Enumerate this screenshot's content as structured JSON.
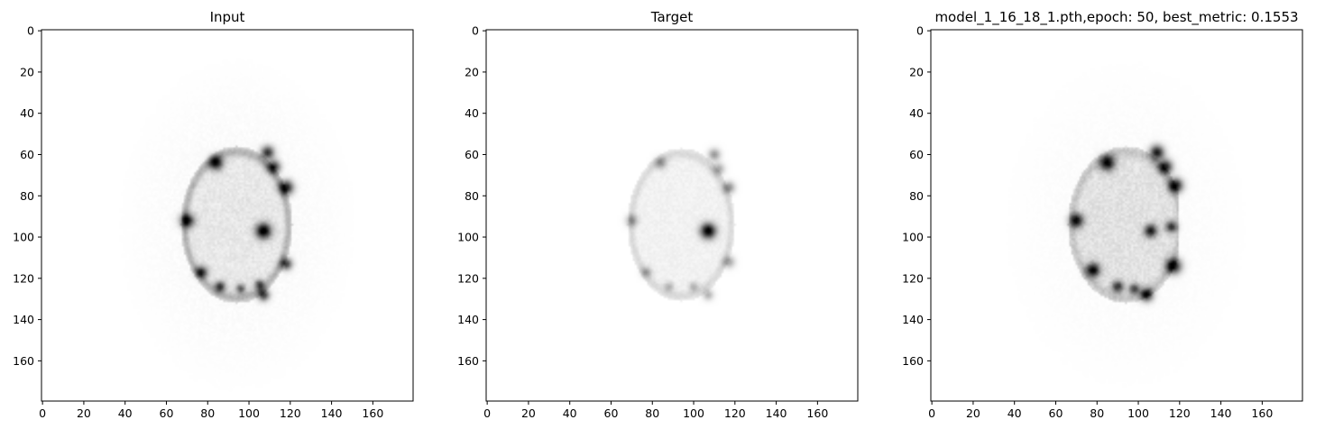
{
  "chart_data": [
    {
      "type": "heatmap",
      "title": "Input",
      "colormap": "gray_r",
      "xlim": [
        0,
        179
      ],
      "ylim": [
        179,
        0
      ],
      "x_ticks": [
        0,
        20,
        40,
        60,
        80,
        100,
        120,
        140,
        160
      ],
      "y_ticks": [
        0,
        20,
        40,
        60,
        80,
        100,
        120,
        140,
        160
      ],
      "image": {
        "shape": "ellipse",
        "center": [
          94,
          94
        ],
        "radii": [
          27,
          38
        ],
        "ring_intensity": 0.22,
        "fill_intensity": 0.07,
        "noise_halo": 0.03,
        "blobs": [
          {
            "x": 84,
            "y": 64,
            "r": 2.4,
            "v": 0.85
          },
          {
            "x": 109,
            "y": 59,
            "r": 2.2,
            "v": 0.8
          },
          {
            "x": 112,
            "y": 66,
            "r": 2.2,
            "v": 0.8
          },
          {
            "x": 118,
            "y": 76,
            "r": 2.4,
            "v": 0.9
          },
          {
            "x": 70,
            "y": 92,
            "r": 2.4,
            "v": 0.85
          },
          {
            "x": 107,
            "y": 97,
            "r": 2.6,
            "v": 1.0
          },
          {
            "x": 118,
            "y": 113,
            "r": 2.0,
            "v": 0.75
          },
          {
            "x": 77,
            "y": 117,
            "r": 2.0,
            "v": 0.75
          },
          {
            "x": 86,
            "y": 124,
            "r": 1.8,
            "v": 0.7
          },
          {
            "x": 96,
            "y": 125,
            "r": 1.6,
            "v": 0.55
          },
          {
            "x": 105,
            "y": 123,
            "r": 1.6,
            "v": 0.6
          },
          {
            "x": 107,
            "y": 128,
            "r": 2.0,
            "v": 0.75
          }
        ]
      }
    },
    {
      "type": "heatmap",
      "title": "Target",
      "colormap": "gray_r",
      "xlim": [
        0,
        179
      ],
      "ylim": [
        179,
        0
      ],
      "x_ticks": [
        0,
        20,
        40,
        60,
        80,
        100,
        120,
        140,
        160
      ],
      "y_ticks": [
        0,
        20,
        40,
        60,
        80,
        100,
        120,
        140,
        160
      ],
      "image": {
        "shape": "ellipse",
        "center": [
          94,
          94
        ],
        "radii": [
          26,
          37
        ],
        "ring_intensity": 0.1,
        "fill_intensity": 0.05,
        "noise_halo": 0.0,
        "blobs": [
          {
            "x": 84,
            "y": 64,
            "r": 2.0,
            "v": 0.35
          },
          {
            "x": 110,
            "y": 60,
            "r": 2.0,
            "v": 0.4
          },
          {
            "x": 112,
            "y": 67,
            "r": 2.0,
            "v": 0.35
          },
          {
            "x": 117,
            "y": 76,
            "r": 2.0,
            "v": 0.45
          },
          {
            "x": 70,
            "y": 92,
            "r": 2.0,
            "v": 0.35
          },
          {
            "x": 107,
            "y": 97,
            "r": 2.6,
            "v": 1.0
          },
          {
            "x": 117,
            "y": 112,
            "r": 2.0,
            "v": 0.35
          },
          {
            "x": 77,
            "y": 117,
            "r": 1.8,
            "v": 0.3
          },
          {
            "x": 88,
            "y": 124,
            "r": 1.6,
            "v": 0.25
          },
          {
            "x": 100,
            "y": 124,
            "r": 1.6,
            "v": 0.25
          },
          {
            "x": 107,
            "y": 128,
            "r": 1.8,
            "v": 0.3
          }
        ]
      }
    },
    {
      "type": "heatmap",
      "title": "model_1_16_18_1.pth,epoch: 50, best_metric: 0.1553",
      "colormap": "gray_r",
      "xlim": [
        0,
        179
      ],
      "ylim": [
        179,
        0
      ],
      "x_ticks": [
        0,
        20,
        40,
        60,
        80,
        100,
        120,
        140,
        160
      ],
      "y_ticks": [
        0,
        20,
        40,
        60,
        80,
        100,
        120,
        140,
        160
      ],
      "image": {
        "shape": "half-ellipse",
        "center": [
          94,
          94
        ],
        "radii": [
          28,
          38
        ],
        "cut_x": 119,
        "ring_intensity": 0.12,
        "fill_intensity": 0.1,
        "noise_halo": 0.02,
        "blobs": [
          {
            "x": 85,
            "y": 64,
            "r": 2.6,
            "v": 0.9
          },
          {
            "x": 109,
            "y": 59,
            "r": 2.4,
            "v": 0.9
          },
          {
            "x": 113,
            "y": 66,
            "r": 2.4,
            "v": 0.9
          },
          {
            "x": 118,
            "y": 75,
            "r": 2.4,
            "v": 0.95
          },
          {
            "x": 70,
            "y": 92,
            "r": 2.4,
            "v": 0.85
          },
          {
            "x": 106,
            "y": 97,
            "r": 2.2,
            "v": 0.8
          },
          {
            "x": 116,
            "y": 95,
            "r": 2.0,
            "v": 0.7
          },
          {
            "x": 117,
            "y": 114,
            "r": 2.6,
            "v": 0.95
          },
          {
            "x": 78,
            "y": 116,
            "r": 2.4,
            "v": 0.9
          },
          {
            "x": 90,
            "y": 124,
            "r": 2.0,
            "v": 0.7
          },
          {
            "x": 98,
            "y": 125,
            "r": 1.8,
            "v": 0.6
          },
          {
            "x": 104,
            "y": 128,
            "r": 2.2,
            "v": 0.85
          }
        ]
      }
    }
  ]
}
